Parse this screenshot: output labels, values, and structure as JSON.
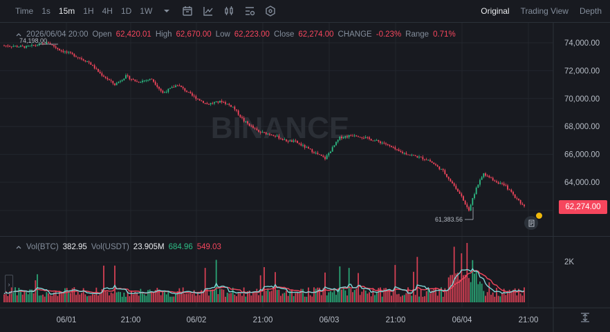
{
  "toolbar": {
    "time_label": "Time",
    "intervals": [
      "1s",
      "15m",
      "1H",
      "4H",
      "1D",
      "1W"
    ],
    "active_interval": "15m",
    "views": [
      "Original",
      "Trading View",
      "Depth"
    ],
    "active_view": "Original"
  },
  "ohlc": {
    "date": "2026/06/04 20:00",
    "open_label": "Open",
    "open": "62,420.01",
    "high_label": "High",
    "high": "62,670.00",
    "low_label": "Low",
    "low": "62,223.00",
    "close_label": "Close",
    "close": "62,274.00",
    "change_label": "CHANGE",
    "change": "-0.23%",
    "range_label": "Range",
    "range": "0.71%"
  },
  "volume": {
    "btc_label": "Vol(BTC)",
    "btc": "382.95",
    "usdt_label": "Vol(USDT)",
    "usdt": "23.905M",
    "ma1": "684.96",
    "ma2": "549.03"
  },
  "last_price": "62,274.00",
  "watermark": "BINANCE",
  "colors": {
    "up": "#2ebd85",
    "down": "#f6465d",
    "ma_fast": "#7ed6d6",
    "ma_slow": "#f6465d",
    "background": "#181a20"
  },
  "chart_data": {
    "type": "candlestick",
    "y_ticks": [
      "74,000.00",
      "72,000.00",
      "70,000.00",
      "68,000.00",
      "66,000.00",
      "64,000.00"
    ],
    "ylim": [
      62000,
      75000
    ],
    "x_ticks": [
      "06/01",
      "21:00",
      "06/02",
      "21:00",
      "06/03",
      "21:00",
      "06/04",
      "21:00"
    ],
    "volume_tick": "2K",
    "max_marker": "74,198.00",
    "min_marker": "61,383.56",
    "trend": [
      [
        0,
        73800
      ],
      [
        12,
        73700
      ],
      [
        24,
        74000
      ],
      [
        30,
        73500
      ],
      [
        38,
        73100
      ],
      [
        46,
        72600
      ],
      [
        52,
        71800
      ],
      [
        60,
        71000
      ],
      [
        66,
        71600
      ],
      [
        72,
        71200
      ],
      [
        80,
        71400
      ],
      [
        86,
        70400
      ],
      [
        94,
        71000
      ],
      [
        102,
        70200
      ],
      [
        110,
        69600
      ],
      [
        118,
        69800
      ],
      [
        124,
        69400
      ],
      [
        130,
        68400
      ],
      [
        138,
        67600
      ],
      [
        146,
        67400
      ],
      [
        152,
        67000
      ],
      [
        158,
        66900
      ],
      [
        166,
        66300
      ],
      [
        174,
        65700
      ],
      [
        182,
        67200
      ],
      [
        190,
        67400
      ],
      [
        198,
        67100
      ],
      [
        206,
        66800
      ],
      [
        214,
        66200
      ],
      [
        222,
        65900
      ],
      [
        230,
        65600
      ],
      [
        238,
        64800
      ],
      [
        246,
        63400
      ],
      [
        252,
        62000
      ],
      [
        256,
        63600
      ],
      [
        260,
        64600
      ],
      [
        266,
        64100
      ],
      [
        272,
        63700
      ],
      [
        278,
        62800
      ],
      [
        282,
        62274
      ]
    ]
  }
}
